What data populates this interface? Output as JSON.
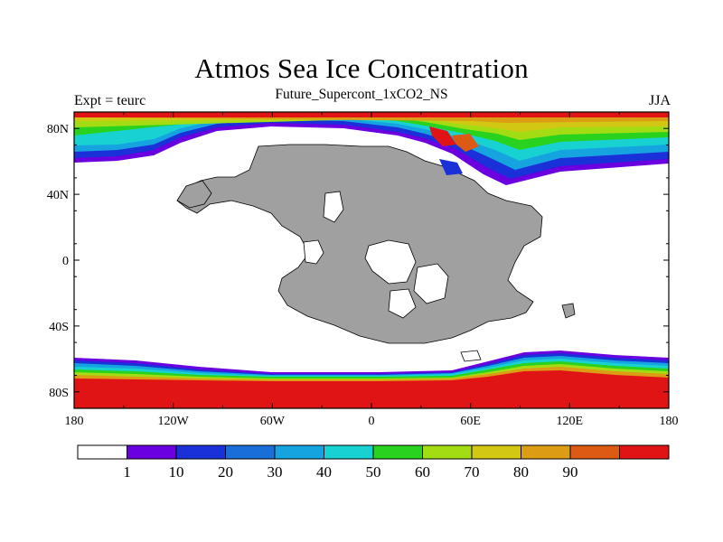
{
  "header": {
    "title": "Atmos Sea Ice Concentration",
    "subtitle": "Future_Supercont_1xCO2_NS",
    "left_string": "Expt = teurc",
    "right_string": "JJA"
  },
  "map": {
    "lat_ticks": [
      {
        "label": "80N",
        "value": 80
      },
      {
        "label": "40N",
        "value": 40
      },
      {
        "label": "0",
        "value": 0
      },
      {
        "label": "40S",
        "value": -40
      },
      {
        "label": "80S",
        "value": -80
      }
    ],
    "lon_ticks": [
      {
        "label": "180",
        "value": -180
      },
      {
        "label": "120W",
        "value": -120
      },
      {
        "label": "60W",
        "value": -60
      },
      {
        "label": "0",
        "value": 0
      },
      {
        "label": "60E",
        "value": 60
      },
      {
        "label": "120E",
        "value": 120
      },
      {
        "label": "180",
        "value": 180
      }
    ],
    "land_color": "#a0a0a0",
    "ocean_color": "#ffffff"
  },
  "colorbar": {
    "colors": [
      "#ffffff",
      "#6a00e0",
      "#1a30d8",
      "#1a6ed8",
      "#16a4e0",
      "#18d2d2",
      "#28d21e",
      "#a4dc14",
      "#d2c814",
      "#dc9c14",
      "#dc5a14",
      "#e01414"
    ],
    "labels": [
      "1",
      "10",
      "20",
      "30",
      "40",
      "50",
      "60",
      "70",
      "80",
      "90"
    ]
  }
}
